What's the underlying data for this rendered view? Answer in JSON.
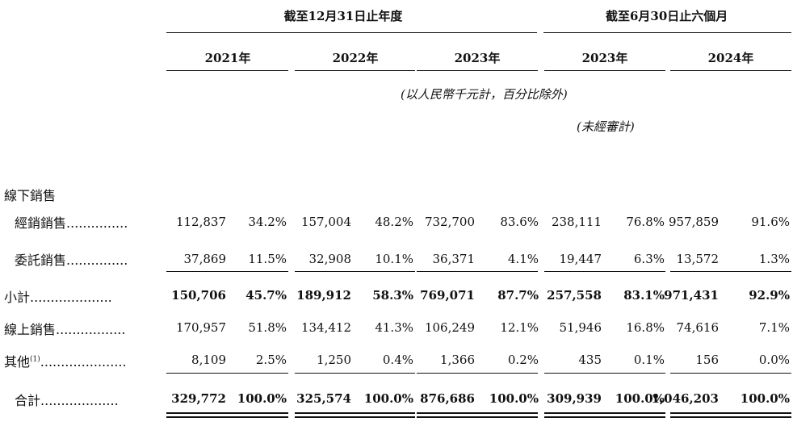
{
  "header": {
    "group_annual": "截至12月31日止年度",
    "group_interim": "截至6月30日止六個月",
    "years": [
      "2021年",
      "2022年",
      "2023年",
      "2023年",
      "2024年"
    ],
    "unit_note": "(以人民幣千元計，百分比除外)",
    "unaudited_note": "(未經審計)"
  },
  "rows": {
    "offline": {
      "label": "線下銷售"
    },
    "distribution": {
      "label": "經銷銷售",
      "dots": "...............",
      "values": [
        "112,837",
        "34.2%",
        "157,004",
        "48.2%",
        "732,700",
        "83.6%",
        "238,111",
        "76.8%",
        "957,859",
        "91.6%"
      ]
    },
    "consignment": {
      "label": "委託銷售",
      "dots": "...............",
      "values": [
        "37,869",
        "11.5%",
        "32,908",
        "10.1%",
        "36,371",
        "4.1%",
        "19,447",
        "6.3%",
        "13,572",
        "1.3%"
      ]
    },
    "subtotal": {
      "label": "小計",
      "dots": "....................",
      "values": [
        "150,706",
        "45.7%",
        "189,912",
        "58.3%",
        "769,071",
        "87.7%",
        "257,558",
        "83.1%",
        "971,431",
        "92.9%"
      ]
    },
    "online": {
      "label": "線上銷售",
      "dots": ".................",
      "values": [
        "170,957",
        "51.8%",
        "134,412",
        "41.3%",
        "106,249",
        "12.1%",
        "51,946",
        "16.8%",
        "74,616",
        "7.1%"
      ]
    },
    "others": {
      "label": "其他",
      "footnote": "(1)",
      "dots": ".....................",
      "values": [
        "8,109",
        "2.5%",
        "1,250",
        "0.4%",
        "1,366",
        "0.2%",
        "435",
        "0.1%",
        "156",
        "0.0%"
      ]
    },
    "total": {
      "label": "合計",
      "dots": "...................",
      "values": [
        "329,772",
        "100.0%",
        "325,574",
        "100.0%",
        "876,686",
        "100.0%",
        "309,939",
        "100.0%",
        "1,046,203",
        "100.0%"
      ]
    }
  }
}
